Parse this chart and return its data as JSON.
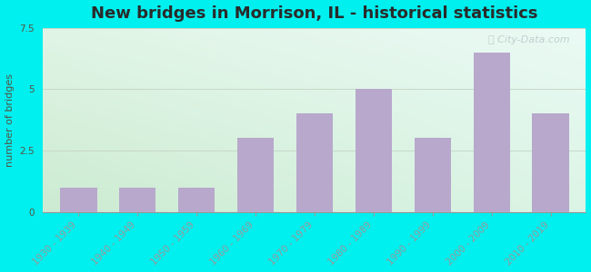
{
  "title": "New bridges in Morrison, IL - historical statistics",
  "categories": [
    "1930 - 1939",
    "1940 - 1949",
    "1950 - 1959",
    "1960 - 1969",
    "1970 - 1979",
    "1980 - 1989",
    "1990 - 1999",
    "2000 - 2009",
    "2010 - 2019"
  ],
  "values": [
    1,
    1,
    1,
    3,
    4,
    5,
    3,
    6.5,
    4
  ],
  "bar_color": "#b8a8cc",
  "bar_edge_color": "#b8a8cc",
  "ylabel": "number of bridges",
  "ylim": [
    0,
    7.5
  ],
  "yticks": [
    0,
    2.5,
    5,
    7.5
  ],
  "background_outer": "#00efef",
  "bg_top_left": "#d8eed8",
  "bg_top_right": "#e8f5f0",
  "bg_bottom_left": "#c8e8c8",
  "bg_bottom_right": "#d8f0e8",
  "grid_color": "#c8d8c8",
  "title_fontsize": 13,
  "title_color": "#2a2a2a",
  "axis_label_fontsize": 8,
  "tick_fontsize": 7.5,
  "tick_color": "#555544",
  "watermark_text": "City-Data.com",
  "watermark_color": "#b8c8c8",
  "watermark_icon": "●"
}
